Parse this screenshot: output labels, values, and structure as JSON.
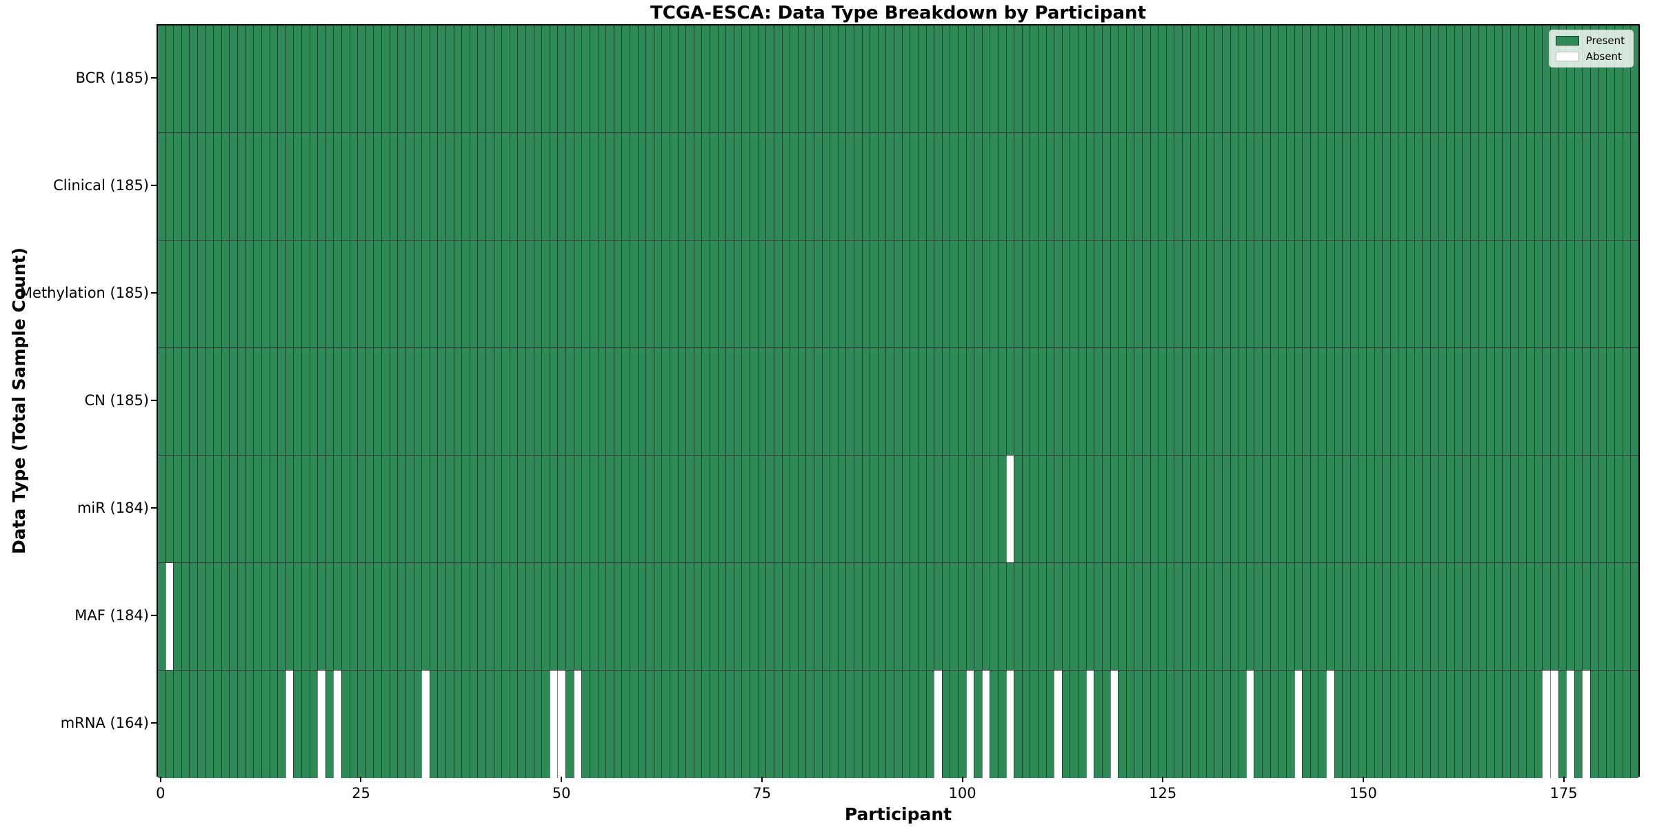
{
  "title": "TCGA-ESCA: Data Type Breakdown by Participant",
  "xlabel": "Participant",
  "ylabel": "Data Type (Total Sample Count)",
  "legend": {
    "present_label": "Present",
    "absent_label": "Absent"
  },
  "colors": {
    "present": "#2e8b57",
    "absent": "#ffffff",
    "edge": "rgba(0,0,0,0.5)"
  },
  "chart_data": {
    "type": "heatmap",
    "title": "TCGA-ESCA: Data Type Breakdown by Participant",
    "xlabel": "Participant",
    "ylabel": "Data Type (Total Sample Count)",
    "n_participants": 185,
    "x_ticks": [
      0,
      25,
      50,
      75,
      100,
      125,
      150,
      175
    ],
    "legend_entries": [
      "Present",
      "Absent"
    ],
    "legend_position": "upper right",
    "grid": false,
    "rows": [
      {
        "name": "BCR",
        "label": "BCR (185)",
        "total": 185,
        "absent_participants": []
      },
      {
        "name": "Clinical",
        "label": "Clinical (185)",
        "total": 185,
        "absent_participants": []
      },
      {
        "name": "Methylation",
        "label": "Methylation (185)",
        "total": 185,
        "absent_participants": []
      },
      {
        "name": "CN",
        "label": "CN (185)",
        "total": 185,
        "absent_participants": []
      },
      {
        "name": "miR",
        "label": "miR (184)",
        "total": 184,
        "absent_participants": [
          106
        ]
      },
      {
        "name": "MAF",
        "label": "MAF (184)",
        "total": 184,
        "absent_participants": [
          1
        ]
      },
      {
        "name": "mRNA",
        "label": "mRNA (164)",
        "total": 164,
        "absent_participants": [
          16,
          20,
          22,
          33,
          49,
          50,
          52,
          97,
          101,
          103,
          106,
          112,
          116,
          119,
          136,
          142,
          146,
          173,
          174,
          176,
          178
        ]
      }
    ]
  }
}
